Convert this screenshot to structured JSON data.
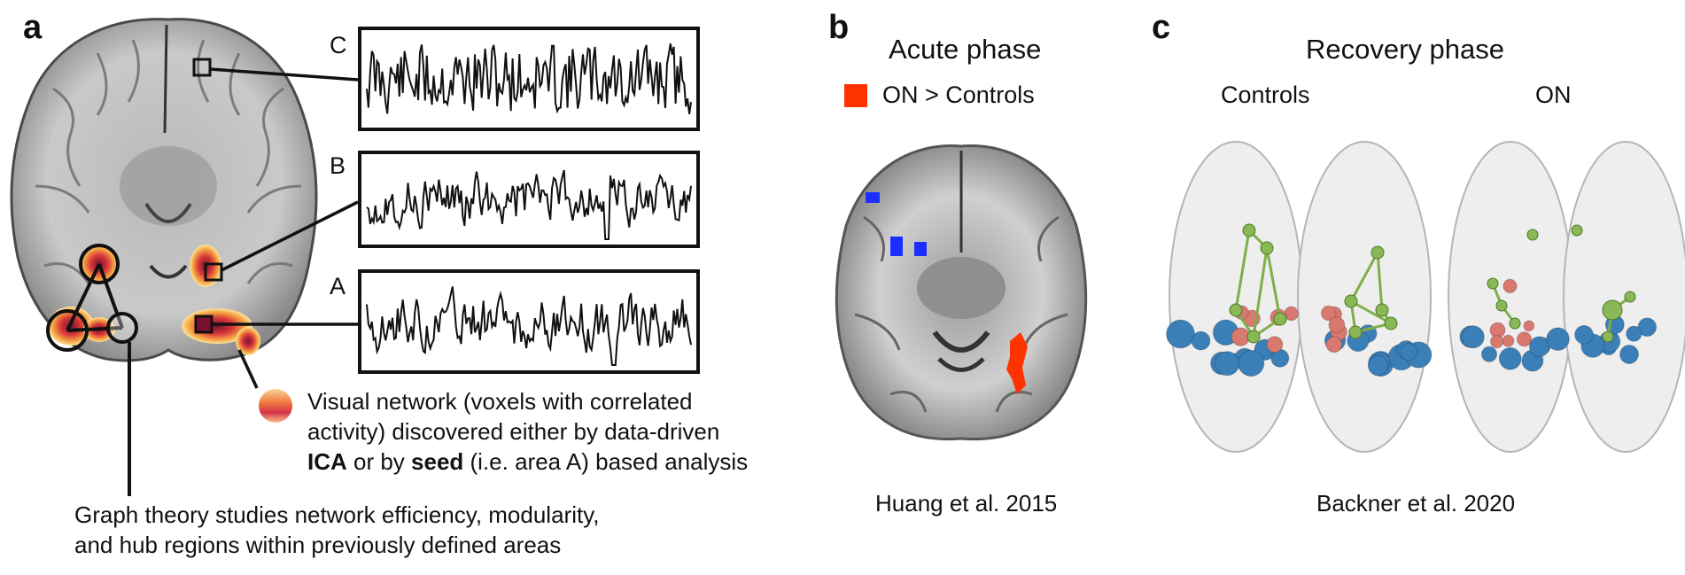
{
  "panel_a": {
    "letter": "a",
    "trace_labels": [
      "C",
      "B",
      "A"
    ],
    "legend_line1": "Visual network (voxels with correlated",
    "legend_line2": "activity) discovered either by data-driven",
    "legend_line3_bold1": "ICA",
    "legend_line3_mid": " or by ",
    "legend_line3_bold2": "seed",
    "legend_line3_end": " (i.e. area A) based analysis",
    "graph_line1": "Graph theory studies network efficiency, modularity,",
    "graph_line2": "and hub regions within previously defined areas"
  },
  "panel_b": {
    "letter": "b",
    "title": "Acute phase",
    "legend_label": "ON > Controls",
    "legend_color": "#ff3300",
    "citation": "Huang et al. 2015"
  },
  "panel_c": {
    "letter": "c",
    "title": "Recovery phase",
    "left_label": "Controls",
    "right_label": "ON",
    "citation": "Backner et al. 2020"
  }
}
